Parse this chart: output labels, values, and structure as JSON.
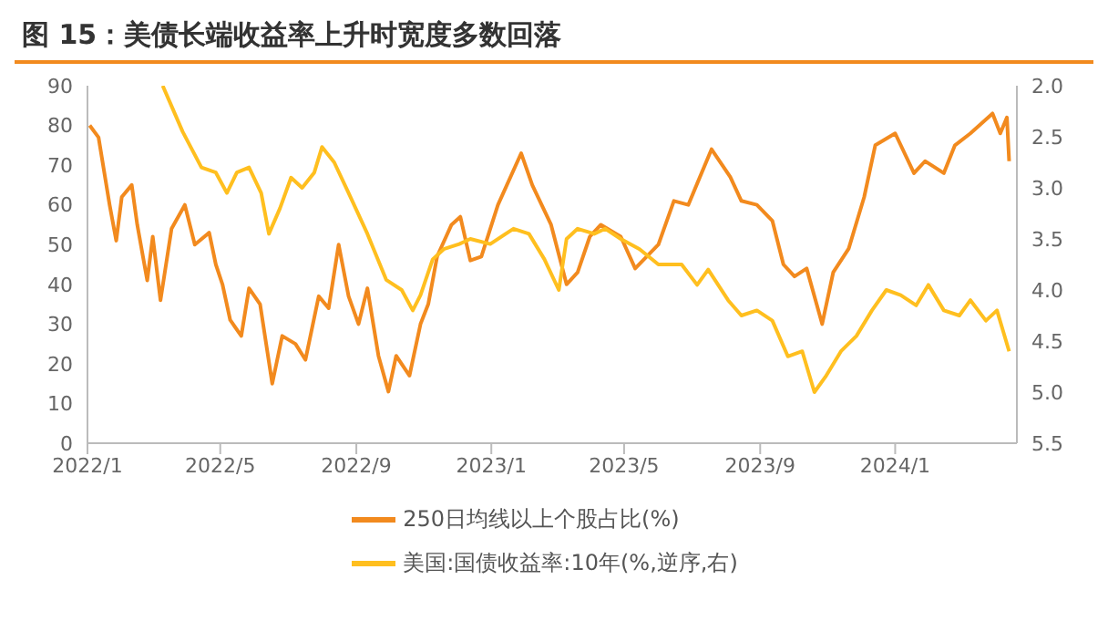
{
  "chart_data": {
    "type": "line",
    "title": "图 15：美债长端收益率上升时宽度多数回落",
    "xlim": [
      "2022-01-01",
      "2024-04-20"
    ],
    "xticks": [
      {
        "value": "2022-01",
        "label": "2022/1"
      },
      {
        "value": "2022-05",
        "label": "2022/5"
      },
      {
        "value": "2022-09",
        "label": "2022/9"
      },
      {
        "value": "2023-01",
        "label": "2023/1"
      },
      {
        "value": "2023-05",
        "label": "2023/5"
      },
      {
        "value": "2023-09",
        "label": "2023/9"
      },
      {
        "value": "2024-01",
        "label": "2024/1"
      }
    ],
    "ylim": [
      0,
      90
    ],
    "yticks": [
      0,
      10,
      20,
      30,
      40,
      50,
      60,
      70,
      80,
      90
    ],
    "y2lim": [
      5.5,
      2.0
    ],
    "y2ticks": [
      {
        "value": 2.0,
        "label": "2.0"
      },
      {
        "value": 2.5,
        "label": "2.5"
      },
      {
        "value": 3.0,
        "label": "3.0"
      },
      {
        "value": 3.5,
        "label": "3.5"
      },
      {
        "value": 4.0,
        "label": "4.0"
      },
      {
        "value": 4.5,
        "label": "4.5"
      },
      {
        "value": 5.0,
        "label": "5.0"
      },
      {
        "value": 5.5,
        "label": "5.5"
      }
    ],
    "grid": false,
    "legend": "bottom",
    "marker": "none",
    "line_style": "solid",
    "series": [
      {
        "name": "250日均线以上个股占比(%)",
        "color": "#f28a1e",
        "x": [
          "2022-01-03",
          "2022-01-11",
          "2022-01-21",
          "2022-01-27",
          "2022-02-01",
          "2022-02-10",
          "2022-02-15",
          "2022-02-24",
          "2022-03-01",
          "2022-03-08",
          "2022-03-18",
          "2022-03-30",
          "2022-04-08",
          "2022-04-21",
          "2022-04-27",
          "2022-05-03",
          "2022-05-10",
          "2022-05-20",
          "2022-05-27",
          "2022-06-06",
          "2022-06-17",
          "2022-06-26",
          "2022-07-08",
          "2022-07-17",
          "2022-07-29",
          "2022-08-07",
          "2022-08-16",
          "2022-08-25",
          "2022-09-03",
          "2022-09-11",
          "2022-09-21",
          "2022-09-30",
          "2022-10-07",
          "2022-10-19",
          "2022-10-29",
          "2022-11-05",
          "2022-11-13",
          "2022-11-26",
          "2022-12-04",
          "2022-12-13",
          "2022-12-23",
          "2023-01-07",
          "2023-01-28",
          "2023-02-07",
          "2023-02-24",
          "2023-03-10",
          "2023-03-20",
          "2023-03-31",
          "2023-04-10",
          "2023-04-28",
          "2023-05-11",
          "2023-06-01",
          "2023-06-15",
          "2023-06-28",
          "2023-07-19",
          "2023-08-05",
          "2023-08-15",
          "2023-08-29",
          "2023-09-12",
          "2023-09-22",
          "2023-10-02",
          "2023-10-13",
          "2023-10-27",
          "2023-11-06",
          "2023-11-20",
          "2023-12-04",
          "2023-12-14",
          "2024-01-01",
          "2024-01-18",
          "2024-01-28",
          "2024-02-14",
          "2024-02-24",
          "2024-03-09",
          "2024-03-29",
          "2024-04-05",
          "2024-04-11",
          "2024-04-13"
        ],
        "values": [
          80,
          77,
          60,
          51,
          62,
          65,
          55,
          41,
          52,
          36,
          54,
          60,
          50,
          53,
          45,
          40,
          31,
          27,
          39,
          35,
          15,
          27,
          25,
          21,
          37,
          34,
          50,
          37,
          30,
          39,
          22,
          13,
          22,
          17,
          30,
          35,
          47,
          55,
          57,
          46,
          47,
          60,
          73,
          65,
          55,
          40,
          43,
          52,
          55,
          52,
          44,
          50,
          61,
          60,
          74,
          67,
          61,
          60,
          56,
          45,
          42,
          44,
          30,
          43,
          49,
          62,
          75,
          78,
          68,
          71,
          68,
          75,
          78,
          83,
          78,
          82,
          71
        ]
      },
      {
        "name": "美国:国债收益率:10年(%,逆序,右)",
        "color": "#ffbf1f",
        "axis": "y2",
        "x": [
          "2022-03-10",
          "2022-03-18",
          "2022-03-28",
          "2022-04-14",
          "2022-04-27",
          "2022-05-07",
          "2022-05-16",
          "2022-05-27",
          "2022-06-07",
          "2022-06-14",
          "2022-06-24",
          "2022-07-04",
          "2022-07-14",
          "2022-07-25",
          "2022-08-01",
          "2022-08-12",
          "2022-08-25",
          "2022-09-11",
          "2022-09-28",
          "2022-10-12",
          "2022-10-22",
          "2022-10-29",
          "2022-11-09",
          "2022-11-19",
          "2022-12-03",
          "2022-12-13",
          "2022-12-31",
          "2023-01-21",
          "2023-02-04",
          "2023-02-18",
          "2023-03-03",
          "2023-03-10",
          "2023-03-20",
          "2023-04-04",
          "2023-04-14",
          "2023-04-28",
          "2023-05-15",
          "2023-06-01",
          "2023-06-22",
          "2023-07-06",
          "2023-07-16",
          "2023-08-03",
          "2023-08-15",
          "2023-08-29",
          "2023-09-12",
          "2023-09-26",
          "2023-10-09",
          "2023-10-20",
          "2023-10-30",
          "2023-11-13",
          "2023-11-27",
          "2023-12-11",
          "2023-12-24",
          "2024-01-06",
          "2024-01-20",
          "2024-01-31",
          "2024-02-14",
          "2024-02-28",
          "2024-03-09",
          "2024-03-23",
          "2024-04-02",
          "2024-04-13"
        ],
        "values": [
          2.0,
          2.2,
          2.45,
          2.8,
          2.85,
          3.05,
          2.85,
          2.8,
          3.05,
          3.45,
          3.2,
          2.9,
          3.0,
          2.85,
          2.6,
          2.75,
          3.05,
          3.45,
          3.9,
          4.0,
          4.2,
          4.05,
          3.7,
          3.6,
          3.55,
          3.5,
          3.55,
          3.4,
          3.45,
          3.7,
          4.0,
          3.5,
          3.4,
          3.45,
          3.4,
          3.5,
          3.6,
          3.75,
          3.75,
          3.95,
          3.8,
          4.1,
          4.25,
          4.2,
          4.3,
          4.65,
          4.6,
          5.0,
          4.85,
          4.6,
          4.45,
          4.2,
          4.0,
          4.05,
          4.15,
          3.95,
          4.2,
          4.25,
          4.1,
          4.3,
          4.2,
          4.6
        ]
      }
    ]
  }
}
